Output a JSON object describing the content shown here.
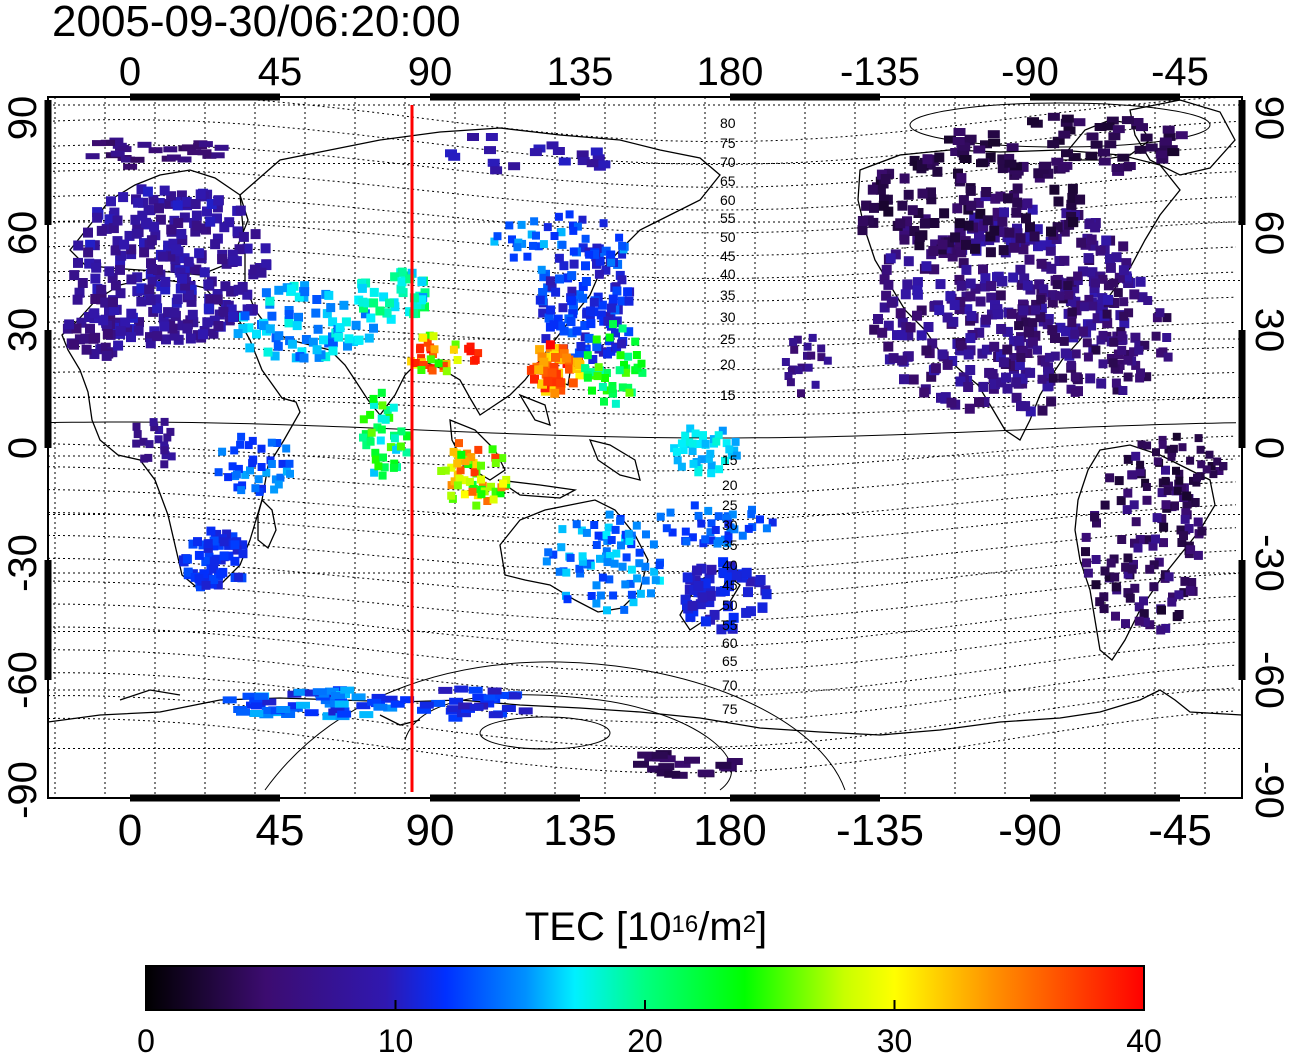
{
  "timestamp": "2005-09-30/06:20:00",
  "colorbar": {
    "title_prefix": "TEC  [10",
    "title_exp1": "16",
    "title_mid": "/m",
    "title_exp2": "2",
    "title_suffix": "]",
    "ticks": [
      "0",
      "10",
      "20",
      "30",
      "40"
    ],
    "range": [
      0,
      40
    ],
    "colormap": [
      "#000000",
      "#5a1290",
      "#0028ff",
      "#00ffff",
      "#00ff00",
      "#ffff00",
      "#ff0000"
    ]
  },
  "axes": {
    "lon_ticks": [
      "0",
      "45",
      "90",
      "135",
      "180",
      "-135",
      "-90",
      "-45"
    ],
    "lat_ticks": [
      "90",
      "60",
      "30",
      "0",
      "-30",
      "-60",
      "-90"
    ]
  },
  "magnetic_latitude_labels": [
    "80",
    "75",
    "70",
    "65",
    "60",
    "55",
    "50",
    "45",
    "40",
    "35",
    "30",
    "25",
    "20",
    "15",
    "15",
    "20",
    "25",
    "30",
    "35",
    "40",
    "45",
    "50",
    "55",
    "60",
    "65",
    "70",
    "75"
  ],
  "marker_line": {
    "longitude": 86,
    "color": "#ff0000"
  }
}
